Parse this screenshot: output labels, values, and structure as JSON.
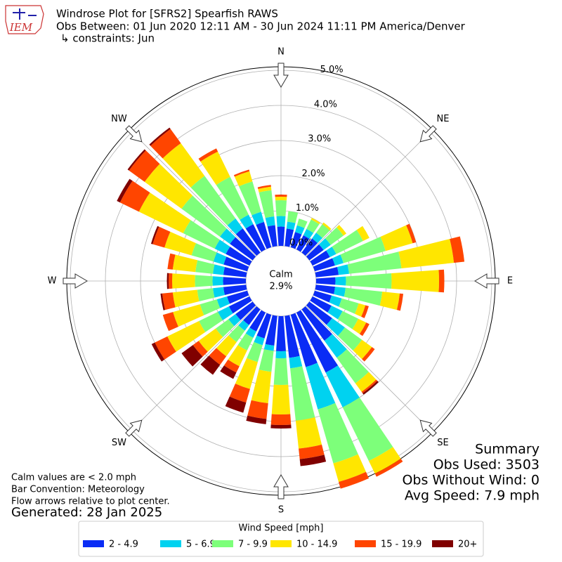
{
  "chart_data": {
    "type": "windrose",
    "logo_text": "IEM",
    "title": "Windrose Plot for [SFRS2] Spearfish RAWS",
    "subtitle": "Obs Between: 01 Jun 2020 12:11 AM - 30 Jun 2024 11:11 PM America/Denver",
    "constraints": "↳ constraints: Jun",
    "directions": [
      0,
      10,
      20,
      30,
      40,
      50,
      60,
      70,
      80,
      90,
      100,
      110,
      120,
      130,
      140,
      150,
      160,
      170,
      180,
      190,
      200,
      210,
      220,
      230,
      240,
      250,
      260,
      270,
      280,
      290,
      300,
      310,
      320,
      330,
      340,
      350
    ],
    "compass": [
      {
        "value": 0,
        "label": "N"
      },
      {
        "value": 45,
        "label": "NE"
      },
      {
        "value": 90,
        "label": "E"
      },
      {
        "value": 135,
        "label": "SE"
      },
      {
        "value": 180,
        "label": "S"
      },
      {
        "value": 225,
        "label": "SW"
      },
      {
        "value": 270,
        "label": "W"
      },
      {
        "value": 315,
        "label": "NW"
      }
    ],
    "rlim": [
      0,
      5.1
    ],
    "rticks": [
      {
        "value": 0,
        "label": "0.0%"
      },
      {
        "value": 1,
        "label": "1.0%"
      },
      {
        "value": 2,
        "label": "2.0%"
      },
      {
        "value": 3,
        "label": "3.0%"
      },
      {
        "value": 4,
        "label": "4.0%"
      },
      {
        "value": 5,
        "label": "5.0%"
      }
    ],
    "calm_title": "Calm",
    "calm": {
      "value": 2.9,
      "label": "2.9%"
    },
    "legend_title": "Wind Speed [mph]",
    "series": [
      {
        "name": "2 - 4.9",
        "color": "#0a2cf5",
        "values": [
          0.55,
          0.5,
          0.45,
          0.45,
          0.5,
          0.5,
          0.55,
          0.6,
          0.65,
          0.55,
          0.55,
          0.5,
          0.6,
          0.8,
          1.1,
          1.9,
          1.55,
          1.2,
          1.0,
          0.85,
          0.7,
          0.6,
          0.55,
          0.6,
          0.65,
          0.6,
          0.65,
          0.65,
          0.65,
          0.7,
          0.75,
          0.8,
          0.85,
          0.8,
          0.75,
          0.6
        ]
      },
      {
        "name": "5 - 6.9",
        "color": "#00d2f0",
        "values": [
          0.3,
          0.2,
          0.2,
          0.2,
          0.2,
          0.25,
          0.2,
          0.25,
          0.3,
          0.3,
          0.3,
          0.3,
          0.35,
          0.45,
          0.6,
          1.1,
          1.25,
          0.3,
          0.2,
          0.15,
          0.2,
          0.2,
          0.2,
          0.25,
          0.35,
          0.3,
          0.3,
          0.3,
          0.3,
          0.3,
          0.35,
          0.35,
          0.35,
          0.3,
          0.3,
          0.25
        ]
      },
      {
        "name": "7 - 9.9",
        "color": "#7dff7a",
        "values": [
          0.45,
          0.3,
          0.2,
          0.3,
          0.3,
          0.45,
          0.85,
          1.25,
          1.5,
          1.3,
          1.05,
          0.5,
          0.5,
          0.6,
          0.9,
          1.7,
          1.6,
          1.5,
          0.76,
          0.6,
          0.5,
          0.4,
          0.4,
          0.45,
          0.6,
          0.5,
          0.45,
          0.5,
          0.5,
          0.65,
          1.0,
          1.35,
          1.5,
          1.2,
          0.9,
          0.75
        ]
      },
      {
        "name": "10 - 14.9",
        "color": "#ffe600",
        "values": [
          0.1,
          0,
          0,
          0.05,
          0.06,
          0.1,
          0.2,
          0.8,
          1.5,
          1.35,
          0.5,
          0.2,
          0.25,
          0.35,
          0.3,
          0.4,
          0.55,
          0.8,
          0.84,
          0.9,
          0.8,
          0.5,
          0.5,
          0.6,
          1.0,
          0.8,
          0.7,
          0.65,
          0.65,
          0.8,
          1.4,
          1.3,
          1.15,
          0.8,
          0.3,
          0.1
        ]
      },
      {
        "name": "15 - 19.9",
        "color": "#ff4500",
        "values": [
          0.06,
          0,
          0,
          0,
          0,
          0,
          0,
          0.1,
          0.3,
          0.15,
          0.1,
          0.1,
          0.1,
          0.1,
          0.05,
          0.1,
          0.2,
          0.3,
          0.3,
          0.45,
          0.4,
          0.2,
          0.3,
          0.2,
          0.4,
          0.3,
          0.3,
          0.1,
          0.15,
          0.35,
          0.6,
          0.55,
          0.5,
          0.1,
          0.05,
          0.05
        ]
      },
      {
        "name": "20+",
        "color": "#800000",
        "values": [
          0,
          0,
          0,
          0,
          0,
          0,
          0,
          0,
          0,
          0,
          0,
          0,
          0,
          0,
          0.05,
          0,
          0,
          0.2,
          0.1,
          0.15,
          0.3,
          0.2,
          0.35,
          0.4,
          0.1,
          0,
          0.05,
          0.05,
          0,
          0.05,
          0.1,
          0.05,
          0.05,
          0,
          0,
          0
        ]
      }
    ],
    "summary": [
      "Summary",
      "Obs Used: 3503",
      "Obs Without Wind: 0",
      "Avg Speed: 7.9 mph"
    ],
    "notes": [
      "Calm values are < 2.0 mph",
      "Bar Convention: Meteorology",
      "Flow arrows relative to plot center."
    ],
    "generated": "Generated: 28 Jan 2025"
  }
}
